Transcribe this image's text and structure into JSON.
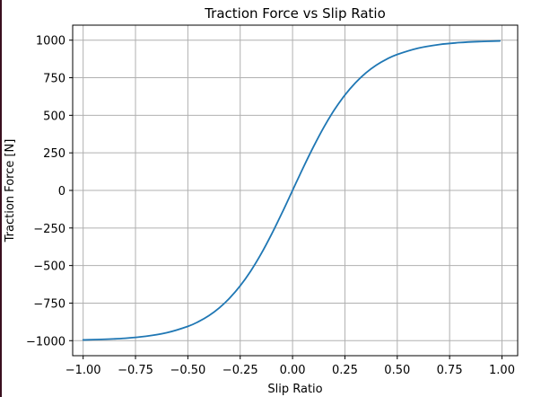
{
  "chart_data": {
    "type": "line",
    "title": "Traction Force vs Slip Ratio",
    "xlabel": "Slip Ratio",
    "ylabel": "Traction Force [N]",
    "xlim": [
      -1.05,
      1.075
    ],
    "ylim": [
      -1100,
      1100
    ],
    "xticks": [
      -1.0,
      -0.75,
      -0.5,
      -0.25,
      0.0,
      0.25,
      0.5,
      0.75,
      1.0
    ],
    "xtick_labels": [
      "−1.00",
      "−0.75",
      "−0.50",
      "−0.25",
      "0.00",
      "0.25",
      "0.50",
      "0.75",
      "1.00"
    ],
    "yticks": [
      -1000,
      -750,
      -500,
      -250,
      0,
      250,
      500,
      750,
      1000
    ],
    "ytick_labels": [
      "−1000",
      "−750",
      "−500",
      "−250",
      "0",
      "250",
      "500",
      "750",
      "1000"
    ],
    "grid": true,
    "series": [
      {
        "color": "#1f77b4",
        "x": [
          -1.0,
          -0.9,
          -0.8,
          -0.7,
          -0.6,
          -0.5,
          -0.45,
          -0.4,
          -0.35,
          -0.3,
          -0.25,
          -0.2,
          -0.15,
          -0.1,
          -0.05,
          0.0,
          0.05,
          0.1,
          0.15,
          0.2,
          0.25,
          0.3,
          0.35,
          0.4,
          0.45,
          0.5,
          0.6,
          0.7,
          0.8,
          0.9,
          0.99
        ],
        "y": [
          -995,
          -991,
          -984,
          -971,
          -947,
          -905,
          -874,
          -834,
          -782,
          -716,
          -635,
          -537,
          -422,
          -291,
          -149,
          0,
          149,
          291,
          422,
          537,
          635,
          716,
          782,
          834,
          874,
          905,
          947,
          971,
          984,
          991,
          995
        ]
      }
    ],
    "colors": {
      "grid": "#b0b0b0",
      "axes": "#000000",
      "line": "#1f77b4",
      "edge": "#3a0f1f"
    }
  }
}
